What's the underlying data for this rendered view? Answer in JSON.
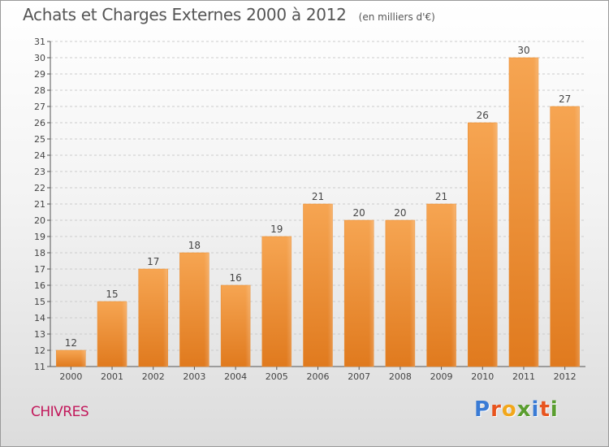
{
  "header": {
    "title": "Achats et Charges Externes 2000 à 2012",
    "subtitle": "(en milliers d'€)"
  },
  "footer": {
    "city": "CHIVRES",
    "logo_text": "Proxiti",
    "logo_colors": [
      "#3a7bd5",
      "#e8541e",
      "#f2a71b",
      "#5a9e2f",
      "#3a7bd5",
      "#e8541e",
      "#5a9e2f"
    ]
  },
  "colors": {
    "bar_light": "#f6a552",
    "bar_dark": "#e07a1e",
    "axis": "#555555",
    "grid": "#cccccc"
  },
  "chart_data": {
    "type": "bar",
    "categories": [
      "2000",
      "2001",
      "2002",
      "2003",
      "2004",
      "2005",
      "2006",
      "2007",
      "2008",
      "2009",
      "2010",
      "2011",
      "2012"
    ],
    "values": [
      12,
      15,
      17,
      18,
      16,
      19,
      21,
      20,
      20,
      21,
      26,
      30,
      27
    ],
    "ylim": [
      11,
      31
    ],
    "yticks": [
      11,
      12,
      13,
      14,
      15,
      16,
      17,
      18,
      19,
      20,
      21,
      22,
      23,
      24,
      25,
      26,
      27,
      28,
      29,
      30,
      31
    ],
    "grid": true,
    "data_labels": true
  }
}
